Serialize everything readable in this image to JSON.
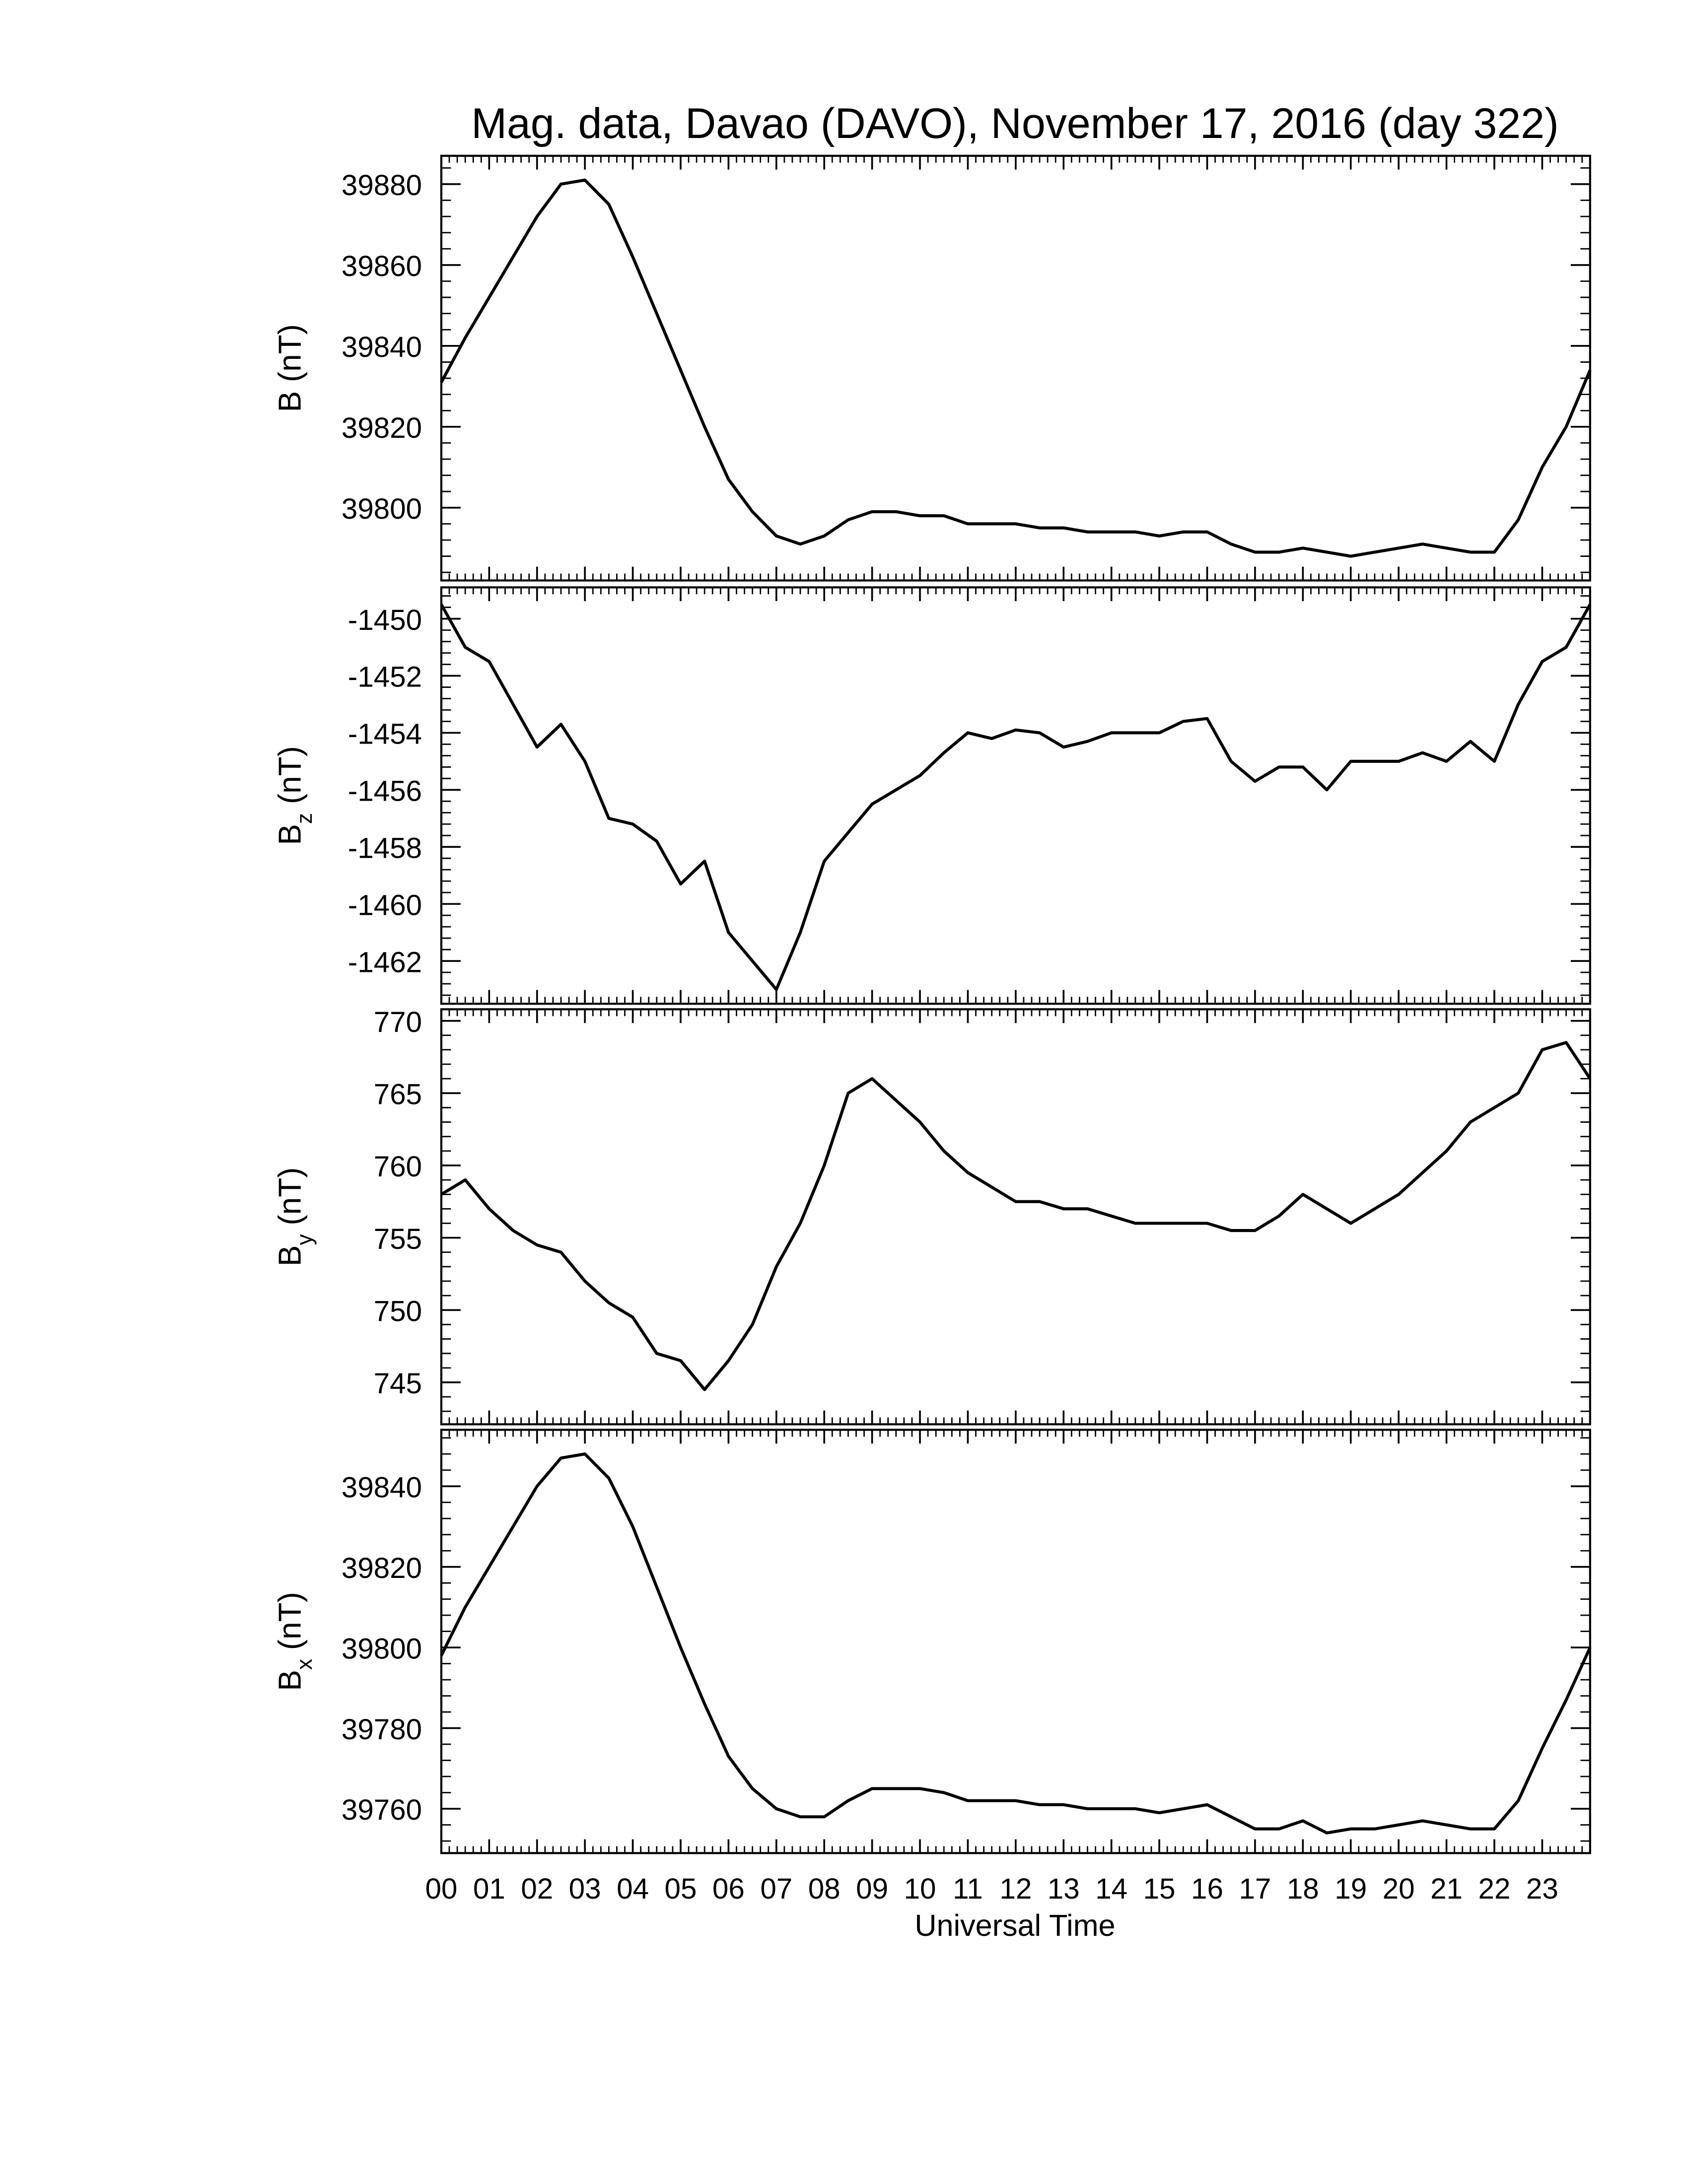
{
  "title": "Mag. data, Davao (DAVO), November 17, 2016 (day 322)",
  "x_axis": {
    "label": "Universal Time",
    "lim": [
      0,
      24
    ],
    "ticks": [
      {
        "value": 0,
        "label": "00"
      },
      {
        "value": 1,
        "label": "01"
      },
      {
        "value": 2,
        "label": "02"
      },
      {
        "value": 3,
        "label": "03"
      },
      {
        "value": 4,
        "label": "04"
      },
      {
        "value": 5,
        "label": "05"
      },
      {
        "value": 6,
        "label": "06"
      },
      {
        "value": 7,
        "label": "07"
      },
      {
        "value": 8,
        "label": "08"
      },
      {
        "value": 9,
        "label": "09"
      },
      10,
      11,
      12,
      13,
      14,
      15,
      16,
      17,
      18,
      19,
      20,
      21,
      22,
      23
    ]
  },
  "chart_data": [
    {
      "type": "line",
      "ylabel_main": "B",
      "ylabel_unit": "(nT)",
      "ylim": [
        39782,
        39887
      ],
      "yticks": [
        39800,
        39820,
        39840,
        39860,
        39880
      ],
      "x": [
        0,
        0.5,
        1,
        1.5,
        2,
        2.5,
        3,
        3.5,
        4,
        4.5,
        5,
        5.5,
        6,
        6.5,
        7,
        7.5,
        8,
        8.5,
        9,
        9.5,
        10,
        10.5,
        11,
        11.5,
        12,
        12.5,
        13,
        13.5,
        14,
        14.5,
        15,
        15.5,
        16,
        16.5,
        17,
        17.5,
        18,
        18.5,
        19,
        19.5,
        20,
        20.5,
        21,
        21.5,
        22,
        22.5,
        23,
        23.5,
        24
      ],
      "series": [
        {
          "color": "#000000",
          "values": [
            39831,
            39842,
            39852,
            39862,
            39872,
            39880,
            39881,
            39875,
            39862,
            39848,
            39834,
            39820,
            39807,
            39799,
            39793,
            39791,
            39793,
            39797,
            39799,
            39799,
            39798,
            39798,
            39796,
            39796,
            39796,
            39795,
            39795,
            39794,
            39794,
            39794,
            39793,
            39794,
            39794,
            39791,
            39789,
            39789,
            39790,
            39789,
            39788,
            39789,
            39790,
            39791,
            39790,
            39789,
            39789,
            39797,
            39810,
            39820,
            39834
          ]
        }
      ]
    },
    {
      "type": "line",
      "ylabel_main": "B",
      "ylabel_sub": "z",
      "ylabel_unit": "(nT)",
      "ylim": [
        -1463.5,
        -1448.9
      ],
      "yticks": [
        -1462,
        -1460,
        -1458,
        -1456,
        -1454,
        -1452,
        -1450
      ],
      "x": [
        0,
        0.5,
        1,
        1.5,
        2,
        2.5,
        3,
        3.5,
        4,
        4.5,
        5,
        5.5,
        6,
        6.5,
        7,
        7.5,
        8,
        8.5,
        9,
        9.5,
        10,
        10.5,
        11,
        11.5,
        12,
        12.5,
        13,
        13.5,
        14,
        14.5,
        15,
        15.5,
        16,
        16.5,
        17,
        17.5,
        18,
        18.5,
        19,
        19.5,
        20,
        20.5,
        21,
        21.5,
        22,
        22.5,
        23,
        23.5,
        24
      ],
      "series": [
        {
          "color": "#000000",
          "values": [
            -1449.5,
            -1451,
            -1451.5,
            -1453,
            -1454.5,
            -1453.7,
            -1455,
            -1457,
            -1457.2,
            -1457.8,
            -1459.3,
            -1458.5,
            -1461,
            -1462,
            -1463,
            -1461,
            -1458.5,
            -1457.5,
            -1456.5,
            -1456,
            -1455.5,
            -1454.7,
            -1454,
            -1454.2,
            -1453.9,
            -1454,
            -1454.5,
            -1454.3,
            -1454,
            -1454,
            -1454,
            -1453.6,
            -1453.5,
            -1455,
            -1455.7,
            -1455.2,
            -1455.2,
            -1456,
            -1455,
            -1455,
            -1455,
            -1454.7,
            -1455,
            -1454.3,
            -1455,
            -1453,
            -1451.5,
            -1451,
            -1449.5
          ]
        }
      ]
    },
    {
      "type": "line",
      "ylabel_main": "B",
      "ylabel_sub": "y",
      "ylabel_unit": "(nT)",
      "ylim": [
        742.1,
        770.8
      ],
      "yticks": [
        745,
        750,
        755,
        760,
        765,
        770
      ],
      "x": [
        0,
        0.5,
        1,
        1.5,
        2,
        2.5,
        3,
        3.5,
        4,
        4.5,
        5,
        5.5,
        6,
        6.5,
        7,
        7.5,
        8,
        8.5,
        9,
        9.5,
        10,
        10.5,
        11,
        11.5,
        12,
        12.5,
        13,
        13.5,
        14,
        14.5,
        15,
        15.5,
        16,
        16.5,
        17,
        17.5,
        18,
        18.5,
        19,
        19.5,
        20,
        20.5,
        21,
        21.5,
        22,
        22.5,
        23,
        23.5,
        24
      ],
      "series": [
        {
          "color": "#000000",
          "values": [
            758,
            759,
            757,
            755.5,
            754.5,
            754,
            752,
            750.5,
            749.5,
            747,
            746.5,
            744.5,
            746.5,
            749,
            753,
            756,
            760,
            765,
            766,
            764.5,
            763,
            761,
            759.5,
            758.5,
            757.5,
            757.5,
            757,
            757,
            756.5,
            756,
            756,
            756,
            756,
            755.5,
            755.5,
            756.5,
            758,
            757,
            756,
            757,
            758,
            759.5,
            761,
            763,
            764,
            765,
            768,
            768.5,
            766
          ]
        }
      ]
    },
    {
      "type": "line",
      "ylabel_main": "B",
      "ylabel_sub": "x",
      "ylabel_unit": "(nT)",
      "ylim": [
        39749,
        39854
      ],
      "yticks": [
        39760,
        39780,
        39800,
        39820,
        39840
      ],
      "x": [
        0,
        0.5,
        1,
        1.5,
        2,
        2.5,
        3,
        3.5,
        4,
        4.5,
        5,
        5.5,
        6,
        6.5,
        7,
        7.5,
        8,
        8.5,
        9,
        9.5,
        10,
        10.5,
        11,
        11.5,
        12,
        12.5,
        13,
        13.5,
        14,
        14.5,
        15,
        15.5,
        16,
        16.5,
        17,
        17.5,
        18,
        18.5,
        19,
        19.5,
        20,
        20.5,
        21,
        21.5,
        22,
        22.5,
        23,
        23.5,
        24
      ],
      "series": [
        {
          "color": "#000000",
          "values": [
            39798,
            39810,
            39820,
            39830,
            39840,
            39847,
            39848,
            39842,
            39830,
            39815,
            39800,
            39786,
            39773,
            39765,
            39760,
            39758,
            39758,
            39762,
            39765,
            39765,
            39765,
            39764,
            39762,
            39762,
            39762,
            39761,
            39761,
            39760,
            39760,
            39760,
            39759,
            39760,
            39761,
            39758,
            39755,
            39755,
            39757,
            39754,
            39755,
            39755,
            39756,
            39757,
            39756,
            39755,
            39755,
            39762,
            39775,
            39787,
            39800
          ]
        }
      ]
    }
  ]
}
